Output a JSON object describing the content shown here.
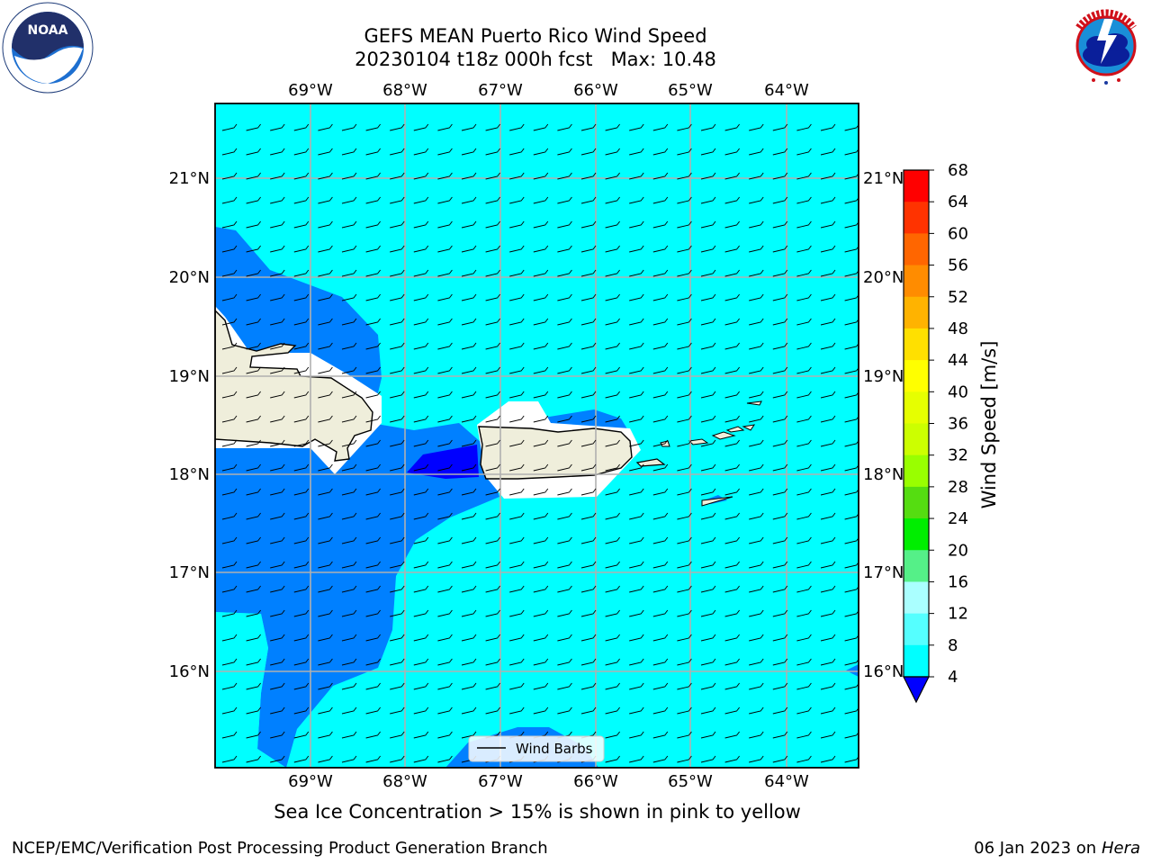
{
  "header": {
    "title_line1": "GEFS MEAN Puerto Rico Wind Speed",
    "title_line2": "20230104 t18z 000h fcst   Max: 10.48"
  },
  "map": {
    "lon_labels": [
      "69°W",
      "68°W",
      "67°W",
      "66°W",
      "65°W",
      "64°W"
    ],
    "lat_labels": [
      "21°N",
      "20°N",
      "19°N",
      "18°N",
      "17°N",
      "16°N"
    ],
    "legend_label": "Wind Barbs",
    "extent": {
      "lon_min": -69.94,
      "lon_max": -63.18,
      "lat_min": 15.04,
      "lat_max": 21.75
    }
  },
  "colorbar": {
    "label": "Wind Speed [m/s]",
    "ticks": [
      "68",
      "64",
      "60",
      "56",
      "52",
      "48",
      "44",
      "40",
      "36",
      "32",
      "28",
      "24",
      "20",
      "16",
      "12",
      "8",
      "4"
    ],
    "colors": [
      "#ff0000",
      "#ff3300",
      "#ff6600",
      "#ff8c00",
      "#ffb300",
      "#ffe000",
      "#ffff00",
      "#e6ff00",
      "#ccff00",
      "#99ff00",
      "#55dd11",
      "#00ee00",
      "#55f088",
      "#aaffff",
      "#55ffff",
      "#00ffff",
      "#0080ff"
    ],
    "under_color": "#0000ff"
  },
  "colors": {
    "ocean_light": "#00ffff",
    "ocean_mid": "#0080ff",
    "ocean_dark": "#0000ff",
    "land": "#efeedb"
  },
  "footer": {
    "note": "Sea Ice Concentration > 15% is shown in pink to yellow",
    "left": "NCEP/EMC/Verification Post Processing Product Generation Branch",
    "date": "06 Jan 2023 on ",
    "machine": "Hera"
  }
}
